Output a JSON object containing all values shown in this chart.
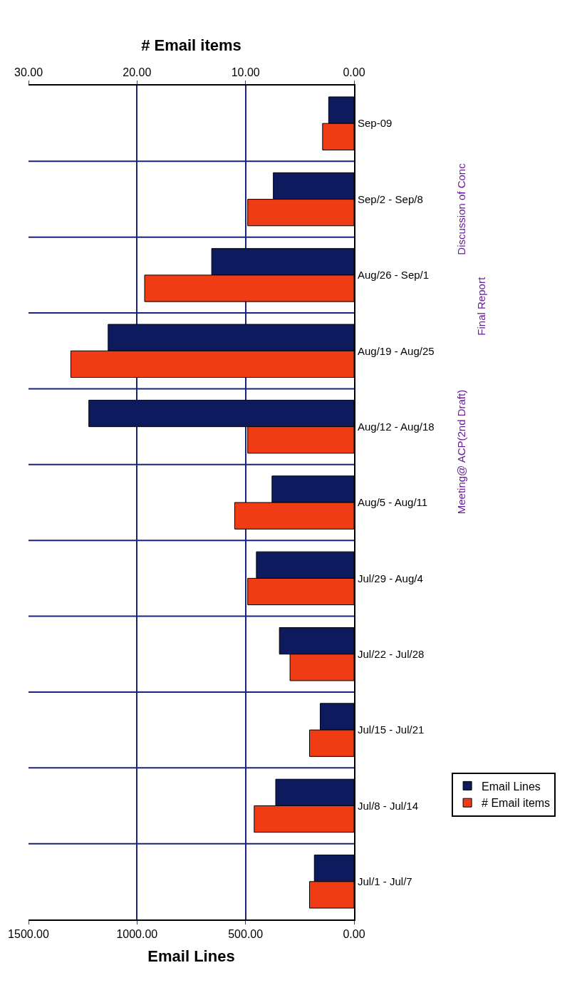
{
  "chart_data": {
    "type": "bar",
    "orientation": "horizontal",
    "categories": [
      "Sep-09",
      "Sep/2 - Sep/8",
      "Aug/26 - Sep/1",
      "Aug/19 - Aug/25",
      "Aug/12 - Aug/18",
      "Aug/5 - Aug/11",
      "Jul/29 - Aug/4",
      "Jul/22 - Jul/28",
      "Jul/15 - Jul/21",
      "Jul/8 - Jul/14",
      "Jul/1 - Jul/7"
    ],
    "series": [
      {
        "name": "Email Lines",
        "color": "#0d1a5e",
        "values": [
          117,
          372,
          656,
          1133,
          1222,
          378,
          450,
          344,
          156,
          361,
          183
        ]
      },
      {
        "name": "# Email items",
        "color": "#f03c14",
        "axis": "x2",
        "values": [
          2.9,
          9.8,
          19.3,
          26.1,
          9.8,
          11.0,
          9.8,
          5.9,
          4.1,
          9.2,
          4.1
        ]
      }
    ],
    "xlabel": "Email Lines",
    "x2label": "# Email items",
    "xlim": [
      1500,
      0
    ],
    "xticks": [
      {
        "value": 0,
        "label": "0.00"
      },
      {
        "value": 500,
        "label": "500.00"
      },
      {
        "value": 1000,
        "label": "1000.00"
      },
      {
        "value": 1500,
        "label": "1500.00"
      }
    ],
    "x2lim": [
      30,
      0
    ],
    "x2ticks": [
      {
        "value": 0,
        "label": "0.00"
      },
      {
        "value": 10,
        "label": "10.00"
      },
      {
        "value": 20,
        "label": "20.00"
      },
      {
        "value": 30,
        "label": "30.00"
      }
    ],
    "grid": true,
    "legend": "right",
    "annotations": [
      "Discussion of Conc",
      "Final Report",
      "Meeting@ ACP(2nd Draft)"
    ]
  }
}
